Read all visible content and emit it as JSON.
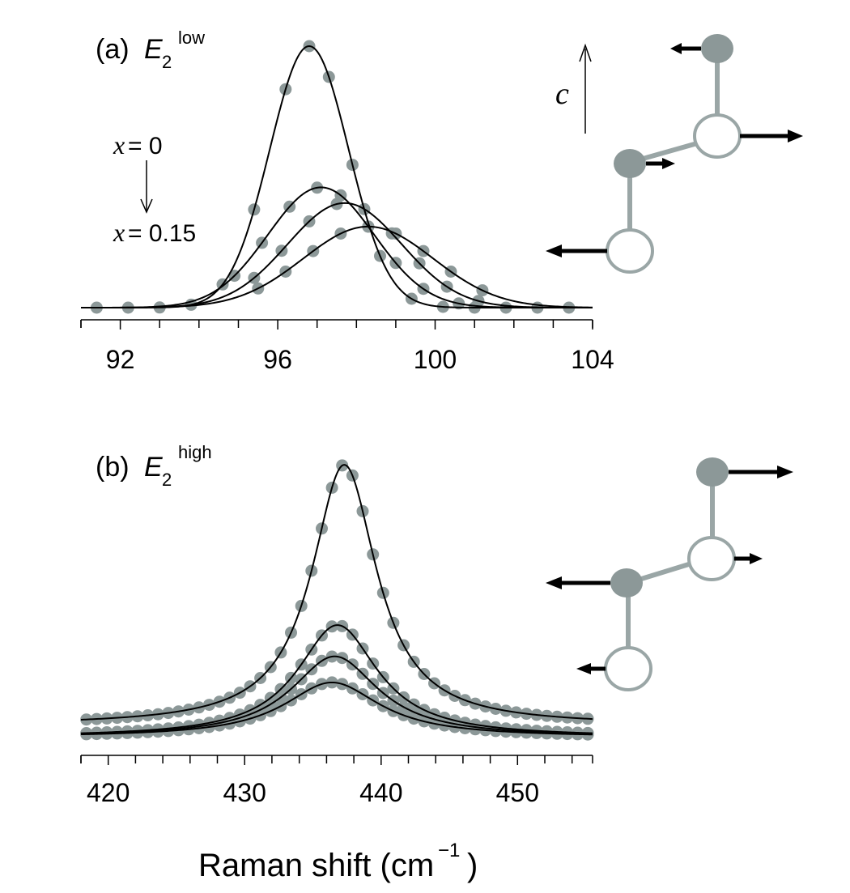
{
  "figure": {
    "xlabel_main": "Raman shift (cm",
    "xlabel_sup": "−1",
    "xlabel_close": ")"
  },
  "chart_data": [
    {
      "type": "line",
      "panel_label": "(a)",
      "title_symbol": "E",
      "title_sub": "2",
      "title_sup": "low",
      "xlim": [
        91,
        104
      ],
      "ylim": [
        0,
        1
      ],
      "x_ticks": [
        92,
        96,
        100,
        104
      ],
      "x_minor_step": 1,
      "grid": false,
      "annotation_top": {
        "var": "x",
        "text": " = 0"
      },
      "annotation_bottom": {
        "var": "x",
        "text": " = 0.15"
      },
      "series": [
        {
          "center": 96.8,
          "amplitude": 1.0,
          "width": 1.0,
          "shape": "gaussian",
          "points_x": [
            91.4,
            92.2,
            93.0,
            93.8,
            94.6,
            95.4,
            96.2,
            96.8,
            97.3,
            97.9,
            98.6,
            99.4,
            100.2,
            101.0,
            101.8,
            102.6,
            103.4
          ]
        },
        {
          "center": 97.1,
          "amplitude": 0.46,
          "width": 1.35,
          "shape": "gaussian",
          "points_x": [
            94.9,
            95.6,
            96.3,
            97.0,
            97.6,
            98.3,
            99.0,
            99.7,
            100.6
          ]
        },
        {
          "center": 97.7,
          "amplitude": 0.4,
          "width": 1.45,
          "shape": "gaussian",
          "points_x": [
            95.4,
            96.1,
            96.8,
            97.5,
            98.2,
            98.9,
            99.6,
            100.3,
            101.1
          ]
        },
        {
          "center": 98.3,
          "amplitude": 0.31,
          "width": 1.65,
          "shape": "gaussian",
          "points_x": [
            95.5,
            96.2,
            96.9,
            97.6,
            98.3,
            99.0,
            99.7,
            100.4,
            101.2
          ]
        }
      ]
    },
    {
      "type": "line",
      "panel_label": "(b)",
      "title_symbol": "E",
      "title_sub": "2",
      "title_sup": "high",
      "xlim": [
        418,
        455.5
      ],
      "ylim": [
        0,
        1
      ],
      "x_ticks": [
        420,
        430,
        440,
        450
      ],
      "x_minor_step": 2,
      "grid": false,
      "series": [
        {
          "center": 437.3,
          "amplitude": 1.0,
          "hwhm": 2.9,
          "baseline": 0.065,
          "shape": "lorentzian"
        },
        {
          "center": 436.8,
          "amplitude": 0.43,
          "hwhm": 3.6,
          "baseline": 0.02,
          "shape": "lorentzian"
        },
        {
          "center": 436.6,
          "amplitude": 0.31,
          "hwhm": 3.9,
          "baseline": 0.02,
          "shape": "lorentzian"
        },
        {
          "center": 436.4,
          "amplitude": 0.21,
          "hwhm": 4.3,
          "baseline": 0.02,
          "shape": "lorentzian"
        }
      ]
    }
  ],
  "diagram": {
    "axis_label": "c",
    "atom_colors": {
      "filled": "#8c9898",
      "bond": "#9aa6a6",
      "arrow": "#000000"
    }
  }
}
